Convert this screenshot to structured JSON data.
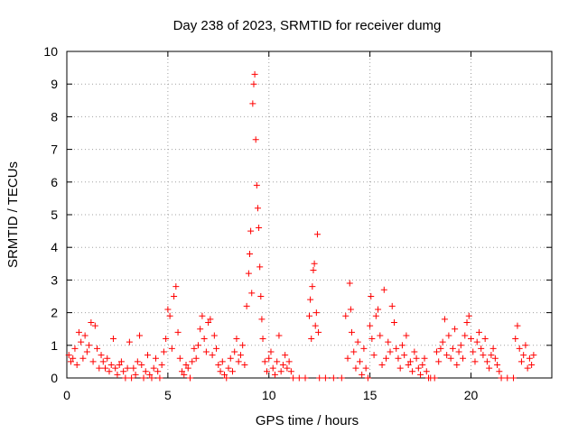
{
  "chart_data": {
    "type": "scatter",
    "title": "Day 238 of 2023, SRMTID for receiver dumg",
    "xlabel": "GPS time / hours",
    "ylabel": "SRMTID / TECUs",
    "xlim": [
      0,
      24
    ],
    "ylim": [
      0,
      10
    ],
    "xticks": [
      "0",
      "5",
      "10",
      "15",
      "20"
    ],
    "xtick_values": [
      0,
      5,
      10,
      15,
      20
    ],
    "yticks": [
      "0",
      "1",
      "2",
      "3",
      "4",
      "5",
      "6",
      "7",
      "8",
      "9",
      "10"
    ],
    "ytick_values": [
      0,
      1,
      2,
      3,
      4,
      5,
      6,
      7,
      8,
      9,
      10
    ],
    "grid": true,
    "marker": "+",
    "color": "#ff0000",
    "series": [
      {
        "name": "SRMTID",
        "points": [
          [
            0.1,
            0.7
          ],
          [
            0.2,
            0.5
          ],
          [
            0.3,
            0.6
          ],
          [
            0.4,
            0.9
          ],
          [
            0.5,
            0.4
          ],
          [
            0.6,
            1.4
          ],
          [
            0.7,
            1.1
          ],
          [
            0.8,
            0.6
          ],
          [
            0.9,
            1.3
          ],
          [
            1.0,
            0.8
          ],
          [
            1.1,
            1.0
          ],
          [
            1.2,
            1.7
          ],
          [
            1.3,
            0.5
          ],
          [
            1.4,
            1.6
          ],
          [
            1.5,
            0.9
          ],
          [
            1.6,
            0.3
          ],
          [
            1.7,
            0.7
          ],
          [
            1.8,
            0.5
          ],
          [
            1.9,
            0.3
          ],
          [
            2.0,
            0.6
          ],
          [
            2.1,
            0.2
          ],
          [
            2.2,
            0.4
          ],
          [
            2.3,
            1.2
          ],
          [
            2.4,
            0.3
          ],
          [
            2.5,
            0.1
          ],
          [
            2.6,
            0.4
          ],
          [
            2.7,
            0.5
          ],
          [
            2.8,
            0.2
          ],
          [
            2.9,
            0.0
          ],
          [
            3.0,
            0.3
          ],
          [
            3.1,
            1.1
          ],
          [
            3.2,
            0.0
          ],
          [
            3.3,
            0.3
          ],
          [
            3.4,
            0.1
          ],
          [
            3.5,
            0.5
          ],
          [
            3.6,
            1.3
          ],
          [
            3.7,
            0.4
          ],
          [
            3.8,
            0.0
          ],
          [
            3.9,
            0.2
          ],
          [
            4.0,
            0.7
          ],
          [
            4.1,
            0.1
          ],
          [
            4.2,
            0.0
          ],
          [
            4.3,
            0.3
          ],
          [
            4.4,
            0.6
          ],
          [
            4.5,
            0.2
          ],
          [
            4.6,
            0.0
          ],
          [
            4.7,
            0.4
          ],
          [
            4.8,
            0.8
          ],
          [
            4.9,
            1.2
          ],
          [
            5.0,
            2.1
          ],
          [
            5.1,
            1.9
          ],
          [
            5.2,
            0.9
          ],
          [
            5.3,
            2.5
          ],
          [
            5.4,
            2.8
          ],
          [
            5.5,
            1.4
          ],
          [
            5.6,
            0.6
          ],
          [
            5.7,
            0.2
          ],
          [
            5.8,
            0.1
          ],
          [
            5.9,
            0.4
          ],
          [
            6.0,
            0.3
          ],
          [
            6.1,
            0.0
          ],
          [
            6.2,
            0.5
          ],
          [
            6.3,
            0.9
          ],
          [
            6.4,
            0.6
          ],
          [
            6.5,
            1.0
          ],
          [
            6.6,
            1.5
          ],
          [
            6.7,
            1.9
          ],
          [
            6.8,
            1.2
          ],
          [
            6.9,
            0.8
          ],
          [
            7.0,
            1.7
          ],
          [
            7.1,
            1.8
          ],
          [
            7.2,
            0.7
          ],
          [
            7.3,
            1.3
          ],
          [
            7.4,
            0.9
          ],
          [
            7.5,
            0.4
          ],
          [
            7.6,
            0.2
          ],
          [
            7.7,
            0.5
          ],
          [
            7.8,
            0.1
          ],
          [
            7.9,
            0.0
          ],
          [
            8.0,
            0.3
          ],
          [
            8.1,
            0.6
          ],
          [
            8.2,
            0.2
          ],
          [
            8.3,
            0.8
          ],
          [
            8.4,
            1.2
          ],
          [
            8.5,
            0.5
          ],
          [
            8.6,
            0.7
          ],
          [
            8.7,
            1.0
          ],
          [
            8.8,
            0.4
          ],
          [
            8.9,
            2.2
          ],
          [
            9.0,
            3.2
          ],
          [
            9.05,
            3.8
          ],
          [
            9.1,
            4.5
          ],
          [
            9.15,
            2.6
          ],
          [
            9.2,
            8.4
          ],
          [
            9.25,
            9.0
          ],
          [
            9.3,
            9.3
          ],
          [
            9.35,
            7.3
          ],
          [
            9.4,
            5.9
          ],
          [
            9.45,
            5.2
          ],
          [
            9.5,
            4.6
          ],
          [
            9.55,
            3.4
          ],
          [
            9.6,
            2.5
          ],
          [
            9.65,
            1.8
          ],
          [
            9.7,
            1.2
          ],
          [
            9.8,
            0.5
          ],
          [
            9.9,
            0.2
          ],
          [
            10.0,
            0.6
          ],
          [
            10.1,
            0.8
          ],
          [
            10.2,
            0.3
          ],
          [
            10.3,
            0.1
          ],
          [
            10.4,
            0.5
          ],
          [
            10.5,
            1.3
          ],
          [
            10.6,
            0.2
          ],
          [
            10.7,
            0.4
          ],
          [
            10.8,
            0.7
          ],
          [
            10.9,
            0.3
          ],
          [
            11.0,
            0.5
          ],
          [
            11.1,
            0.2
          ],
          [
            11.2,
            0.0
          ],
          [
            11.5,
            0.0
          ],
          [
            11.8,
            0.0
          ],
          [
            12.0,
            1.9
          ],
          [
            12.05,
            2.4
          ],
          [
            12.1,
            1.2
          ],
          [
            12.15,
            2.8
          ],
          [
            12.2,
            3.3
          ],
          [
            12.25,
            3.5
          ],
          [
            12.3,
            1.6
          ],
          [
            12.35,
            2.0
          ],
          [
            12.4,
            4.4
          ],
          [
            12.45,
            1.4
          ],
          [
            12.5,
            0.0
          ],
          [
            12.8,
            0.0
          ],
          [
            13.2,
            0.0
          ],
          [
            13.6,
            0.0
          ],
          [
            13.8,
            1.9
          ],
          [
            13.9,
            0.6
          ],
          [
            14.0,
            2.9
          ],
          [
            14.05,
            2.1
          ],
          [
            14.1,
            1.4
          ],
          [
            14.2,
            0.8
          ],
          [
            14.3,
            0.3
          ],
          [
            14.4,
            1.1
          ],
          [
            14.5,
            0.5
          ],
          [
            14.6,
            0.1
          ],
          [
            14.7,
            0.9
          ],
          [
            14.8,
            0.3
          ],
          [
            14.9,
            0.0
          ],
          [
            15.0,
            1.6
          ],
          [
            15.05,
            2.5
          ],
          [
            15.1,
            1.2
          ],
          [
            15.2,
            0.7
          ],
          [
            15.3,
            1.9
          ],
          [
            15.4,
            2.1
          ],
          [
            15.5,
            1.3
          ],
          [
            15.6,
            0.4
          ],
          [
            15.7,
            2.7
          ],
          [
            15.8,
            0.6
          ],
          [
            15.9,
            1.1
          ],
          [
            16.0,
            0.8
          ],
          [
            16.1,
            2.2
          ],
          [
            16.2,
            1.7
          ],
          [
            16.3,
            0.9
          ],
          [
            16.4,
            0.6
          ],
          [
            16.5,
            0.3
          ],
          [
            16.6,
            1.0
          ],
          [
            16.7,
            0.7
          ],
          [
            16.8,
            1.3
          ],
          [
            16.9,
            0.4
          ],
          [
            17.0,
            0.5
          ],
          [
            17.1,
            0.2
          ],
          [
            17.2,
            0.8
          ],
          [
            17.3,
            0.6
          ],
          [
            17.4,
            0.3
          ],
          [
            17.5,
            0.1
          ],
          [
            17.6,
            0.4
          ],
          [
            17.7,
            0.6
          ],
          [
            17.8,
            0.2
          ],
          [
            17.9,
            0.0
          ],
          [
            18.0,
            0.0
          ],
          [
            18.2,
            0.0
          ],
          [
            18.3,
            0.8
          ],
          [
            18.4,
            0.5
          ],
          [
            18.5,
            0.9
          ],
          [
            18.6,
            1.1
          ],
          [
            18.7,
            1.8
          ],
          [
            18.8,
            0.7
          ],
          [
            18.9,
            1.3
          ],
          [
            19.0,
            0.6
          ],
          [
            19.1,
            0.9
          ],
          [
            19.2,
            1.5
          ],
          [
            19.3,
            0.4
          ],
          [
            19.4,
            0.8
          ],
          [
            19.5,
            1.0
          ],
          [
            19.6,
            0.6
          ],
          [
            19.7,
            1.3
          ],
          [
            19.8,
            1.7
          ],
          [
            19.9,
            1.9
          ],
          [
            20.0,
            1.2
          ],
          [
            20.1,
            0.8
          ],
          [
            20.2,
            0.5
          ],
          [
            20.3,
            1.1
          ],
          [
            20.4,
            1.4
          ],
          [
            20.5,
            0.9
          ],
          [
            20.6,
            0.7
          ],
          [
            20.7,
            1.2
          ],
          [
            20.8,
            0.5
          ],
          [
            20.9,
            0.3
          ],
          [
            21.0,
            0.7
          ],
          [
            21.1,
            0.9
          ],
          [
            21.2,
            0.6
          ],
          [
            21.3,
            0.4
          ],
          [
            21.4,
            0.2
          ],
          [
            21.5,
            0.0
          ],
          [
            21.8,
            0.0
          ],
          [
            22.1,
            0.0
          ],
          [
            22.2,
            1.2
          ],
          [
            22.3,
            1.6
          ],
          [
            22.4,
            0.9
          ],
          [
            22.5,
            0.5
          ],
          [
            22.6,
            0.7
          ],
          [
            22.7,
            1.0
          ],
          [
            22.8,
            0.3
          ],
          [
            22.9,
            0.6
          ],
          [
            23.0,
            0.4
          ],
          [
            23.1,
            0.7
          ]
        ]
      }
    ]
  }
}
